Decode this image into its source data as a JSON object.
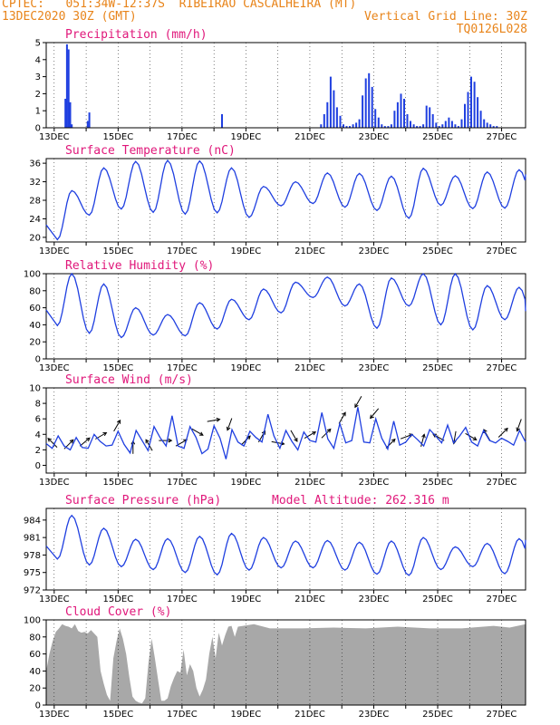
{
  "header": {
    "line1": "CPTEC:   051:34W-12:37S  RIBEIRAO CASCALHEIRA (MT)",
    "line2": "13DEC2020 30Z (GMT)",
    "grid_note": "Vertical Grid Line: 30Z",
    "run_code": "TQ0126L028",
    "model_altitude": "Model Altitude: 262.316 m"
  },
  "x_labels": [
    "13DEC",
    "15DEC",
    "17DEC",
    "19DEC",
    "21DEC",
    "23DEC",
    "25DEC",
    "27DEC"
  ],
  "colors": {
    "header": "#e8841a",
    "title": "#e0177a",
    "line": "#1f3fe0",
    "bar": "#1f3fe0",
    "cloud": "#a8a8a8"
  },
  "chart_data": [
    {
      "type": "bar",
      "title": "Precipitation (mm/h)",
      "ylim": [
        0,
        5
      ],
      "yticks": [
        "0",
        "1",
        "2",
        "3",
        "4",
        "5"
      ],
      "x_days": [
        0.6,
        0.65,
        0.7,
        0.75,
        0.8,
        1.3,
        1.35,
        5.5,
        8.6,
        8.7,
        8.8,
        8.9,
        9.0,
        9.1,
        9.2,
        9.3,
        9.4,
        9.5,
        9.6,
        9.7,
        9.8,
        9.9,
        10.0,
        10.1,
        10.2,
        10.3,
        10.4,
        10.5,
        10.6,
        10.7,
        10.8,
        10.9,
        11.0,
        11.1,
        11.2,
        11.3,
        11.4,
        11.5,
        11.6,
        11.7,
        11.8,
        11.9,
        12.0,
        12.1,
        12.2,
        12.3,
        12.4,
        12.5,
        12.6,
        12.7,
        12.8,
        12.9,
        13.0,
        13.1,
        13.2,
        13.3,
        13.4,
        13.5,
        13.6,
        13.7,
        13.8,
        13.9,
        14.0,
        14.1
      ],
      "values": [
        1.7,
        4.9,
        4.6,
        1.5,
        0.2,
        0.4,
        0.9,
        0.8,
        0.2,
        0.8,
        1.5,
        3.0,
        2.2,
        1.2,
        0.7,
        0.2,
        0.1,
        0.1,
        0.2,
        0.3,
        0.5,
        1.9,
        2.9,
        3.2,
        2.4,
        1.1,
        0.6,
        0.2,
        0.1,
        0.1,
        0.2,
        1.0,
        1.5,
        2.0,
        1.7,
        0.8,
        0.4,
        0.2,
        0.1,
        0.1,
        0.2,
        1.3,
        1.2,
        0.8,
        0.3,
        0.1,
        0.2,
        0.4,
        0.6,
        0.4,
        0.2,
        0.1,
        0.5,
        1.4,
        2.1,
        3.0,
        2.7,
        1.8,
        1.0,
        0.5,
        0.3,
        0.2,
        0.1,
        0.1
      ]
    },
    {
      "type": "line",
      "title": "Surface Temperature (nC)",
      "ylim": [
        19,
        37
      ],
      "yticks": [
        "20",
        "24",
        "28",
        "32",
        "36"
      ],
      "minima": [
        19.5,
        24.8,
        26.1,
        25.4,
        25.0,
        25.3,
        24.3,
        26.8,
        27.3,
        26.5,
        25.8,
        24.1,
        26.9,
        26.2,
        26.3,
        25.5,
        24.7
      ],
      "maxima": [
        30.1,
        35.0,
        36.4,
        36.6,
        36.5,
        35.0,
        31.0,
        32.0,
        33.9,
        33.8,
        33.2,
        34.9,
        33.3,
        34.1,
        34.6,
        33.9,
        33.6
      ]
    },
    {
      "type": "line",
      "title": "Relative Humidity (%)",
      "ylim": [
        0,
        100
      ],
      "yticks": [
        "0",
        "20",
        "40",
        "60",
        "80",
        "100"
      ],
      "minima": [
        39,
        30,
        25,
        28,
        27,
        35,
        46,
        54,
        72,
        62,
        36,
        62,
        40,
        34,
        46,
        28,
        30
      ],
      "maxima": [
        100,
        88,
        60,
        52,
        66,
        70,
        82,
        90,
        96,
        88,
        95,
        100,
        100,
        86,
        84,
        80,
        56
      ]
    },
    {
      "type": "line",
      "title": "Surface Wind (m/s)",
      "ylim": [
        -1,
        10
      ],
      "yticks": [
        "0",
        "2",
        "4",
        "6",
        "8",
        "10"
      ],
      "values": [
        2.8,
        2.2,
        3.8,
        2.5,
        2.0,
        3.6,
        2.3,
        2.2,
        4.0,
        3.1,
        2.5,
        2.6,
        4.4,
        2.7,
        1.6,
        4.5,
        3.2,
        1.9,
        5.0,
        3.6,
        2.5,
        6.4,
        2.5,
        2.2,
        5.0,
        3.6,
        1.5,
        2.1,
        5.1,
        3.5,
        0.8,
        4.6,
        3.0,
        2.5,
        4.4,
        3.6,
        3.0,
        6.6,
        3.8,
        2.2,
        4.5,
        3.1,
        2.0,
        4.3,
        3.2,
        3.0,
        6.8,
        3.4,
        2.2,
        5.4,
        2.9,
        3.2,
        7.5,
        3.0,
        2.9,
        6.0,
        3.5,
        2.1,
        5.7,
        2.6,
        3.0,
        4.0,
        3.3,
        2.5,
        4.6,
        3.8,
        2.9,
        5.2,
        2.9,
        3.8,
        4.9,
        3.0,
        2.5,
        4.5,
        3.2,
        2.9,
        3.5,
        3.1,
        2.6,
        4.5,
        3.0
      ],
      "arrows_deg": [
        315,
        45,
        50,
        60,
        30,
        0,
        330,
        90,
        60,
        120,
        80,
        200,
        45,
        30,
        100,
        150,
        60,
        45,
        30,
        210,
        220,
        45,
        70,
        15,
        300,
        190,
        120,
        330,
        45,
        200
      ]
    },
    {
      "type": "line",
      "title": "Surface Pressure (hPa)",
      "ylim": [
        972,
        986
      ],
      "yticks": [
        "972",
        "975",
        "978",
        "981",
        "984"
      ],
      "minima": [
        977.3,
        976.3,
        976.0,
        975.5,
        975.0,
        974.6,
        975.4,
        975.8,
        975.8,
        975.4,
        974.7,
        974.5,
        975.5,
        976.0,
        974.8,
        974.1,
        973.3
      ],
      "maxima": [
        984.8,
        982.6,
        980.7,
        980.8,
        981.2,
        981.7,
        981.0,
        980.4,
        980.5,
        980.2,
        980.4,
        981.0,
        979.4,
        980.0,
        980.8,
        981.7,
        980.6
      ]
    },
    {
      "type": "area",
      "title": "Cloud Cover (%)",
      "ylim": [
        0,
        100
      ],
      "yticks": [
        "0",
        "20",
        "40",
        "60",
        "80",
        "100"
      ],
      "x_days": [
        0.0,
        0.1,
        0.2,
        0.3,
        0.4,
        0.5,
        0.6,
        0.7,
        0.8,
        0.9,
        1.0,
        1.1,
        1.2,
        1.3,
        1.4,
        1.5,
        1.6,
        1.7,
        1.8,
        1.9,
        2.0,
        2.1,
        2.2,
        2.3,
        2.4,
        2.5,
        2.6,
        2.7,
        2.8,
        2.9,
        3.0,
        3.1,
        3.2,
        3.3,
        3.4,
        3.5,
        3.6,
        3.7,
        3.8,
        3.9,
        4.0,
        4.1,
        4.2,
        4.3,
        4.4,
        4.5,
        4.6,
        4.7,
        4.8,
        4.9,
        5.0,
        5.1,
        5.2,
        5.3,
        5.4,
        5.5,
        5.6,
        5.7,
        5.8,
        5.9,
        6.0,
        6.5,
        7.0,
        8.0,
        9.0,
        10.0,
        11.0,
        12.0,
        13.0,
        14.0,
        14.5,
        15.0
      ],
      "values": [
        40,
        60,
        75,
        86,
        90,
        95,
        93,
        92,
        90,
        95,
        87,
        85,
        86,
        84,
        88,
        84,
        80,
        40,
        25,
        12,
        5,
        55,
        75,
        90,
        78,
        60,
        33,
        10,
        5,
        3,
        2,
        8,
        50,
        78,
        55,
        30,
        5,
        5,
        8,
        22,
        32,
        40,
        38,
        65,
        35,
        48,
        40,
        20,
        10,
        18,
        30,
        60,
        80,
        55,
        85,
        70,
        82,
        92,
        93,
        80,
        92,
        95,
        90,
        90,
        91,
        90,
        92,
        90,
        90,
        93,
        91,
        95
      ]
    }
  ]
}
